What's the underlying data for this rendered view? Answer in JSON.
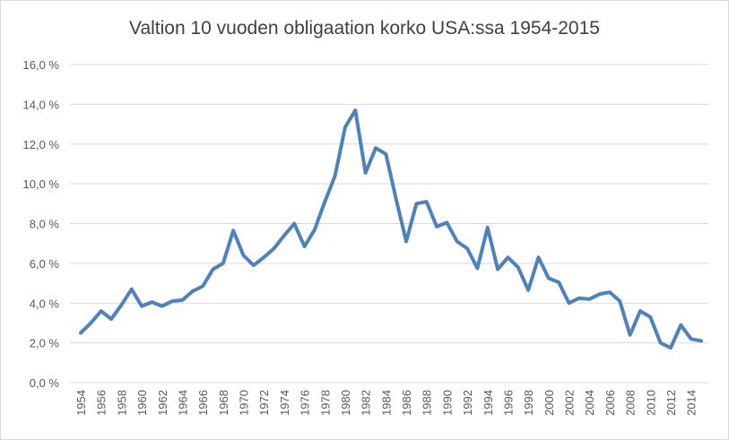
{
  "chart_data": {
    "type": "line",
    "title": "Valtion 10 vuoden obligaation korko USA:ssa 1954-2015",
    "xlabel": "",
    "ylabel": "",
    "ylim": [
      0,
      16
    ],
    "y_ticks": [
      0,
      2,
      4,
      6,
      8,
      10,
      12,
      14,
      16
    ],
    "y_tick_labels": [
      "0,0 %",
      "2,0 %",
      "4,0 %",
      "6,0 %",
      "8,0 %",
      "10,0 %",
      "12,0 %",
      "14,0 %",
      "16,0 %"
    ],
    "x_tick_labels": [
      "1954",
      "1956",
      "1958",
      "1960",
      "1962",
      "1964",
      "1966",
      "1968",
      "1970",
      "1972",
      "1974",
      "1976",
      "1978",
      "1980",
      "1982",
      "1984",
      "1986",
      "1988",
      "1990",
      "1992",
      "1994",
      "1996",
      "1998",
      "2000",
      "2002",
      "2004",
      "2006",
      "2008",
      "2010",
      "2012",
      "2014"
    ],
    "grid": true,
    "legend": "none",
    "colors": {
      "series": "#4f81bd",
      "grid": "#d9d9d9",
      "text": "#595959"
    },
    "x": [
      1954,
      1955,
      1956,
      1957,
      1958,
      1959,
      1960,
      1961,
      1962,
      1963,
      1964,
      1965,
      1966,
      1967,
      1968,
      1969,
      1970,
      1971,
      1972,
      1973,
      1974,
      1975,
      1976,
      1977,
      1978,
      1979,
      1980,
      1981,
      1982,
      1983,
      1984,
      1985,
      1986,
      1987,
      1988,
      1989,
      1990,
      1991,
      1992,
      1993,
      1994,
      1995,
      1996,
      1997,
      1998,
      1999,
      2000,
      2001,
      2002,
      2003,
      2004,
      2005,
      2006,
      2007,
      2008,
      2009,
      2010,
      2011,
      2012,
      2013,
      2014,
      2015
    ],
    "series": [
      {
        "values": [
          2.5,
          3.0,
          3.6,
          3.2,
          3.9,
          4.7,
          3.85,
          4.05,
          3.85,
          4.1,
          4.15,
          4.6,
          4.85,
          5.7,
          6.0,
          7.65,
          6.4,
          5.9,
          6.3,
          6.75,
          7.4,
          8.0,
          6.85,
          7.7,
          9.1,
          10.4,
          12.85,
          13.7,
          10.55,
          11.8,
          11.5,
          9.25,
          7.1,
          9.0,
          9.1,
          7.85,
          8.05,
          7.1,
          6.75,
          5.75,
          7.8,
          5.7,
          6.3,
          5.8,
          4.65,
          6.3,
          5.25,
          5.05,
          4.0,
          4.25,
          4.2,
          4.45,
          4.55,
          4.1,
          2.4,
          3.6,
          3.3,
          2.0,
          1.75,
          2.9,
          2.2,
          2.1
        ]
      }
    ]
  }
}
